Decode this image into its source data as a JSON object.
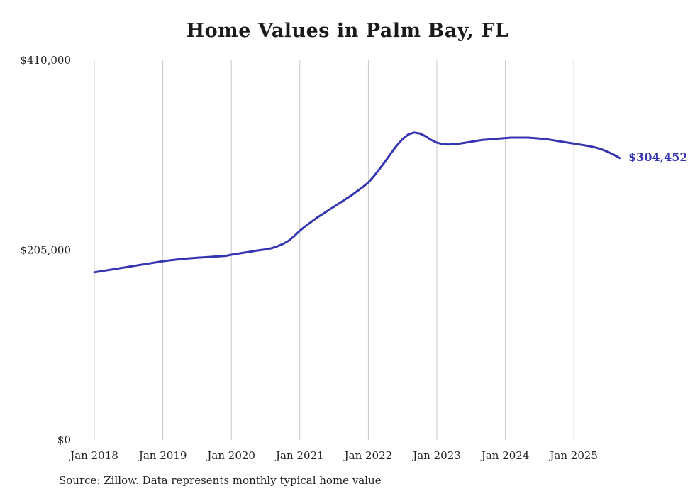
{
  "chart": {
    "title": "Home Values in Palm Bay, FL",
    "end_label": "$304,452",
    "source_note": "Source: Zillow. Data represents monthly typical home value"
  },
  "colors": {
    "line": "#3535b2",
    "grid": "#c9c9c9",
    "tick_text": "#222222"
  },
  "chart_data": {
    "type": "line",
    "title": "Home Values in Palm Bay, FL",
    "xlabel": "",
    "ylabel": "",
    "ylim": [
      0,
      410000
    ],
    "grid": "vertical-only",
    "legend": "none",
    "x_start": "Jan 2018",
    "x_frequency": "monthly",
    "x_tick_labels": [
      "Jan 2018",
      "Jan 2019",
      "Jan 2020",
      "Jan 2021",
      "Jan 2022",
      "Jan 2023",
      "Jan 2024",
      "Jan 2025"
    ],
    "y_ticks": [
      {
        "value": 0,
        "label": "$0"
      },
      {
        "value": 205000,
        "label": "$205,000"
      },
      {
        "value": 410000,
        "label": "$410,000"
      }
    ],
    "latest_value": 304452,
    "latest_value_label": "$304,452",
    "values": [
      181000,
      182000,
      183000,
      184000,
      185000,
      186000,
      187000,
      188000,
      189000,
      190000,
      191000,
      192000,
      193000,
      193800,
      194500,
      195200,
      195800,
      196300,
      196800,
      197200,
      197600,
      198000,
      198400,
      198800,
      200000,
      201000,
      202000,
      203000,
      204000,
      205000,
      205800,
      207000,
      209000,
      211500,
      215000,
      220000,
      226000,
      231000,
      235500,
      240000,
      244000,
      248000,
      252000,
      256000,
      260000,
      264000,
      268500,
      273000,
      278000,
      285000,
      293000,
      301000,
      310000,
      318000,
      325000,
      330000,
      332000,
      331000,
      328000,
      324000,
      321000,
      319500,
      319000,
      319500,
      320000,
      321000,
      322000,
      323000,
      324000,
      324500,
      325000,
      325500,
      326000,
      326500,
      326500,
      326500,
      326500,
      326000,
      325500,
      325000,
      324000,
      323000,
      322000,
      321000,
      320000,
      319000,
      318000,
      317000,
      315500,
      313500,
      311000,
      308000,
      304452
    ]
  }
}
